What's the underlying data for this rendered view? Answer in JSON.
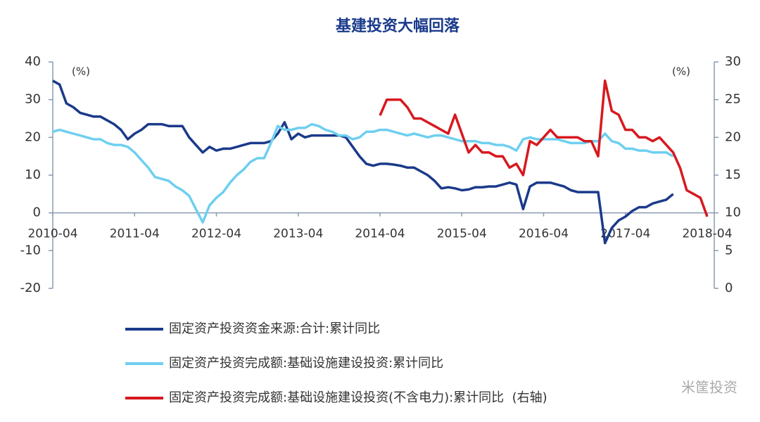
{
  "chart_data": {
    "type": "line",
    "title": "基建投资大幅回落",
    "y_unit": "(%)",
    "y2_unit": "(%)",
    "watermark": "米筐投资",
    "categories": [
      "2010-04",
      "2010-05",
      "2010-06",
      "2010-07",
      "2010-08",
      "2010-09",
      "2010-10",
      "2010-11",
      "2010-12",
      "2011-01",
      "2011-02",
      "2011-03",
      "2011-04",
      "2011-05",
      "2011-06",
      "2011-07",
      "2011-08",
      "2011-09",
      "2011-10",
      "2011-11",
      "2011-12",
      "2012-01",
      "2012-02",
      "2012-03",
      "2012-04",
      "2012-05",
      "2012-06",
      "2012-07",
      "2012-08",
      "2012-09",
      "2012-10",
      "2012-11",
      "2012-12",
      "2013-01",
      "2013-02",
      "2013-03",
      "2013-04",
      "2013-05",
      "2013-06",
      "2013-07",
      "2013-08",
      "2013-09",
      "2013-10",
      "2013-11",
      "2013-12",
      "2014-01",
      "2014-02",
      "2014-03",
      "2014-04",
      "2014-05",
      "2014-06",
      "2014-07",
      "2014-08",
      "2014-09",
      "2014-10",
      "2014-11",
      "2014-12",
      "2015-01",
      "2015-02",
      "2015-03",
      "2015-04",
      "2015-05",
      "2015-06",
      "2015-07",
      "2015-08",
      "2015-09",
      "2015-10",
      "2015-11",
      "2015-12",
      "2016-01",
      "2016-02",
      "2016-03",
      "2016-04",
      "2016-05",
      "2016-06",
      "2016-07",
      "2016-08",
      "2016-09",
      "2016-10",
      "2016-11",
      "2016-12",
      "2017-01",
      "2017-02",
      "2017-03",
      "2017-04",
      "2017-05",
      "2017-06",
      "2017-07",
      "2017-08",
      "2017-09",
      "2017-10",
      "2017-11",
      "2017-12",
      "2018-01",
      "2018-02",
      "2018-03",
      "2018-04"
    ],
    "xticks": [
      "2010-04",
      "2011-04",
      "2012-04",
      "2013-04",
      "2014-04",
      "2015-04",
      "2016-04",
      "2017-04",
      "2018-04"
    ],
    "ylim": [
      -20,
      40
    ],
    "yticks": [
      -20,
      -10,
      0,
      10,
      20,
      30,
      40
    ],
    "y2lim": [
      0,
      30
    ],
    "y2ticks": [
      0,
      5,
      10,
      15,
      20,
      25,
      30
    ],
    "legend": "bottom",
    "series": [
      {
        "name": "固定资产投资资金来源:合计:累计同比",
        "color": "#1a3a8a",
        "axis": "y",
        "values": [
          35,
          34,
          29,
          28,
          26.5,
          26,
          25.5,
          25.5,
          24.5,
          23.5,
          22,
          19.5,
          21,
          22,
          23.5,
          23.5,
          23.5,
          23,
          23,
          23,
          20,
          18,
          16,
          17.5,
          16.5,
          17,
          17,
          17.5,
          18,
          18.5,
          18.5,
          18.5,
          19,
          21,
          24,
          19.5,
          21,
          20,
          20.5,
          20.5,
          20.5,
          20.5,
          20.5,
          20,
          17.5,
          15,
          13,
          12.5,
          13,
          13,
          12.8,
          12.5,
          12,
          12,
          11,
          10,
          8.5,
          6.5,
          6.8,
          6.5,
          6,
          6.2,
          6.8,
          6.8,
          7,
          7,
          7.5,
          8,
          7.5,
          1,
          7,
          8,
          8,
          8,
          7.5,
          7,
          6,
          5.5,
          5.5,
          5.5,
          5.5,
          -8,
          -4,
          -2,
          -1,
          0.5,
          1.5,
          1.5,
          2.5,
          3,
          3.5,
          5,
          null,
          null,
          null,
          null,
          null
        ]
      },
      {
        "name": "固定资产投资完成额:基础设施建设投资:累计同比",
        "color": "#6ecff0",
        "axis": "y",
        "values": [
          21.5,
          22,
          21.5,
          21,
          20.5,
          20,
          19.5,
          19.5,
          18.5,
          18,
          18,
          17.5,
          16,
          14,
          12,
          9.5,
          9,
          8.5,
          7,
          6,
          4.5,
          1,
          -2.5,
          2,
          4,
          5.5,
          8,
          10,
          11.5,
          13.5,
          14.5,
          14.5,
          18.5,
          23,
          22,
          22,
          22.5,
          22.5,
          23.5,
          23,
          22,
          21.5,
          20.5,
          20.5,
          19.5,
          20,
          21.5,
          21.5,
          22,
          22,
          21.5,
          21,
          20.5,
          21,
          20.5,
          20,
          20.5,
          20.5,
          20,
          19.5,
          19,
          19,
          19,
          18.5,
          18.5,
          18,
          18,
          17.5,
          16.5,
          19.5,
          20,
          19.5,
          19.5,
          19.5,
          19.5,
          19,
          18.5,
          18.5,
          18.5,
          19,
          19,
          21,
          19,
          18.5,
          17,
          17,
          16.5,
          16.5,
          16,
          16,
          16,
          15,
          null,
          null,
          null,
          null,
          null
        ]
      },
      {
        "name": "固定资产投资完成额:基础设施建设投资(不含电力):累计同比  (右轴)",
        "color": "#d7191f",
        "axis": "y2",
        "values": [
          null,
          null,
          null,
          null,
          null,
          null,
          null,
          null,
          null,
          null,
          null,
          null,
          null,
          null,
          null,
          null,
          null,
          null,
          null,
          null,
          null,
          null,
          null,
          null,
          null,
          null,
          null,
          null,
          null,
          null,
          null,
          null,
          null,
          null,
          null,
          null,
          null,
          null,
          null,
          null,
          null,
          null,
          null,
          null,
          null,
          null,
          null,
          null,
          22.9,
          25,
          25,
          25,
          24,
          22.5,
          22.5,
          22,
          21.5,
          21,
          20.5,
          23,
          20.5,
          18,
          19,
          18,
          18,
          17.5,
          17.5,
          16,
          16.5,
          15,
          19.5,
          19,
          20,
          21,
          20,
          20,
          20,
          20,
          19.5,
          19.5,
          17.5,
          27.5,
          23.5,
          23,
          21,
          21,
          20,
          20,
          19.5,
          20,
          19,
          18,
          16,
          13,
          12.5,
          12,
          9.5
        ]
      }
    ]
  }
}
